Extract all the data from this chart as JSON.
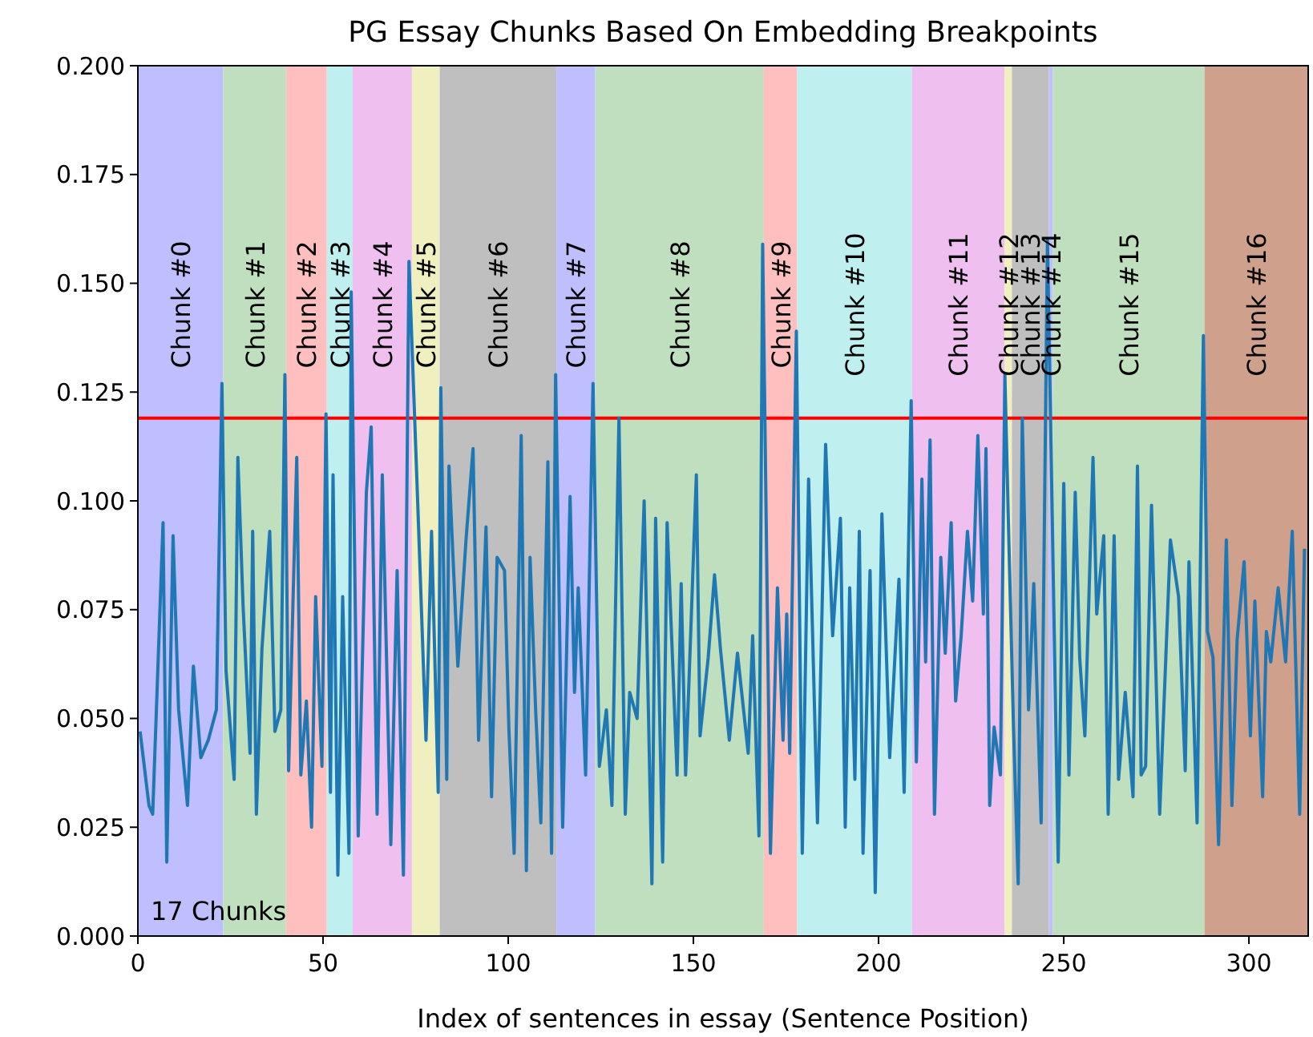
{
  "chart_data": {
    "type": "line",
    "title": "PG Essay Chunks Based On Embedding Breakpoints",
    "xlabel": "Index of sentences in essay (Sentence Position)",
    "annotations": [
      "17 Chunks"
    ],
    "xlim": [
      0,
      316
    ],
    "xticks": [
      0,
      50,
      100,
      150,
      200,
      250,
      300
    ],
    "ylim": [
      0,
      0.2
    ],
    "yticks": [
      {
        "value": 0,
        "label": "0.000"
      },
      {
        "value": 0.025,
        "label": "0.025"
      },
      {
        "value": 0.05,
        "label": "0.050"
      },
      {
        "value": 0.075,
        "label": "0.075"
      },
      {
        "value": 0.1,
        "label": "0.100"
      },
      {
        "value": 0.125,
        "label": "0.125"
      },
      {
        "value": 0.15,
        "label": "0.150"
      },
      {
        "value": 0.175,
        "label": "0.175"
      },
      {
        "value": 0.2,
        "label": "0.200"
      }
    ],
    "grid": false,
    "marker": "none",
    "line_style": "solid",
    "ref_lines": [
      {
        "axis": "y",
        "value": 0.119,
        "color": "#ff0000"
      }
    ],
    "bands": [
      {
        "axis": "x",
        "from": 0,
        "to": 23,
        "label": "Chunk #0",
        "color": "#bfbfff"
      },
      {
        "axis": "x",
        "from": 23,
        "to": 40,
        "label": "Chunk #1",
        "color": "#bfdfbf"
      },
      {
        "axis": "x",
        "from": 40,
        "to": 51,
        "label": "Chunk #2",
        "color": "#ffbfbf"
      },
      {
        "axis": "x",
        "from": 51,
        "to": 58,
        "label": "Chunk #3",
        "color": "#bfefef"
      },
      {
        "axis": "x",
        "from": 58,
        "to": 74,
        "label": "Chunk #4",
        "color": "#efbfef"
      },
      {
        "axis": "x",
        "from": 74,
        "to": 81.5,
        "label": "Chunk #5",
        "color": "#efefbf"
      },
      {
        "axis": "x",
        "from": 81.5,
        "to": 113,
        "label": "Chunk #6",
        "color": "#bfbfbf"
      },
      {
        "axis": "x",
        "from": 113,
        "to": 123.5,
        "label": "Chunk #7",
        "color": "#bfbfff"
      },
      {
        "axis": "x",
        "from": 123.5,
        "to": 169,
        "label": "Chunk #8",
        "color": "#bfdfbf"
      },
      {
        "axis": "x",
        "from": 169,
        "to": 178,
        "label": "Chunk #9",
        "color": "#ffbfbf"
      },
      {
        "axis": "x",
        "from": 178,
        "to": 209,
        "label": "Chunk #10",
        "color": "#bfefef"
      },
      {
        "axis": "x",
        "from": 209,
        "to": 234,
        "label": "Chunk #11",
        "color": "#efbfef"
      },
      {
        "axis": "x",
        "from": 234,
        "to": 236,
        "label": "Chunk #12",
        "color": "#efefbf"
      },
      {
        "axis": "x",
        "from": 236,
        "to": 246,
        "label": "Chunk #13",
        "color": "#bfbfbf"
      },
      {
        "axis": "x",
        "from": 246,
        "to": 247,
        "label": "Chunk #14",
        "color": "#bfbfff"
      },
      {
        "axis": "x",
        "from": 247,
        "to": 288,
        "label": "Chunk #15",
        "color": "#bfdfbf"
      },
      {
        "axis": "x",
        "from": 288,
        "to": 316,
        "label": "Chunk #16",
        "color": "#cfa08c"
      }
    ],
    "series": [
      {
        "color": "#1f77b4",
        "x": [
          0.6,
          3,
          4,
          6.8,
          7.8,
          9.5,
          11,
          13.4,
          15,
          17,
          19,
          21.2,
          22.7,
          23.8,
          26,
          27,
          28.4,
          30.3,
          31,
          32,
          33.5,
          35.6,
          37,
          38.6,
          39.7,
          40.7,
          42.9,
          44,
          45.5,
          46.9,
          48,
          49.7,
          50.8,
          52,
          52.7,
          54,
          55.3,
          57,
          57.6,
          59.5,
          61.7,
          63,
          64.6,
          66,
          68.3,
          70,
          71.7,
          73.2,
          75.5,
          77.8,
          79.3,
          81.1,
          81.8,
          83.4,
          84,
          86.4,
          88.6,
          90.5,
          92,
          94,
          95.5,
          97,
          99,
          100.2,
          101.6,
          103.5,
          104.9,
          105.9,
          107.4,
          108.8,
          110.7,
          111.7,
          112.8,
          114.7,
          116.7,
          117.9,
          118.9,
          120.9,
          122.9,
          124.6,
          126.5,
          128,
          129.9,
          131.6,
          132.8,
          134.8,
          136.7,
          138.8,
          139.8,
          141.7,
          142.9,
          145.6,
          146.7,
          147.9,
          150.8,
          151.8,
          154,
          155.7,
          157.3,
          159.7,
          161.9,
          164.8,
          166,
          167.7,
          168.7,
          170.8,
          172.7,
          174.2,
          175.2,
          176,
          177.8,
          179.4,
          181.1,
          183.5,
          185.7,
          187.6,
          189.7,
          191,
          192.2,
          193.6,
          194.8,
          195.8,
          197.7,
          199.1,
          200.9,
          203,
          205.5,
          206.9,
          208.8,
          210.2,
          211.7,
          212.7,
          213.9,
          215.1,
          216.8,
          218,
          219.6,
          220.8,
          222.3,
          224,
          225.4,
          226.8,
          228.3,
          229,
          230,
          231.2,
          232.9,
          234.1,
          235,
          236.4,
          237.7,
          238.8,
          240.5,
          241.9,
          243.9,
          245.6,
          248.5,
          250,
          251.4,
          253.1,
          254.3,
          255.7,
          257.9,
          258.9,
          260.8,
          262,
          263.6,
          264.8,
          266.6,
          268.7,
          269.9,
          270.9,
          272.1,
          273.7,
          275.9,
          278.8,
          281,
          282.8,
          283.8,
          286,
          287.7,
          288.8,
          290.3,
          291.8,
          293.9,
          295.4,
          296.8,
          298.7,
          300.4,
          301.6,
          303.7,
          304.7,
          305.9,
          307.9,
          309.9,
          311.7,
          313.7,
          315
        ],
        "values": [
          0.047,
          0.03,
          0.028,
          0.095,
          0.017,
          0.092,
          0.052,
          0.03,
          0.062,
          0.041,
          0.045,
          0.052,
          0.127,
          0.061,
          0.036,
          0.11,
          0.076,
          0.042,
          0.093,
          0.028,
          0.066,
          0.093,
          0.047,
          0.052,
          0.129,
          0.038,
          0.11,
          0.037,
          0.054,
          0.025,
          0.078,
          0.039,
          0.12,
          0.033,
          0.106,
          0.014,
          0.078,
          0.019,
          0.148,
          0.023,
          0.102,
          0.117,
          0.028,
          0.106,
          0.021,
          0.084,
          0.014,
          0.155,
          0.101,
          0.045,
          0.093,
          0.033,
          0.126,
          0.036,
          0.108,
          0.062,
          0.091,
          0.112,
          0.045,
          0.094,
          0.032,
          0.087,
          0.084,
          0.047,
          0.019,
          0.115,
          0.015,
          0.087,
          0.052,
          0.026,
          0.109,
          0.019,
          0.129,
          0.025,
          0.101,
          0.056,
          0.08,
          0.037,
          0.127,
          0.039,
          0.052,
          0.03,
          0.119,
          0.028,
          0.056,
          0.05,
          0.1,
          0.012,
          0.096,
          0.017,
          0.095,
          0.037,
          0.081,
          0.037,
          0.106,
          0.046,
          0.064,
          0.083,
          0.066,
          0.045,
          0.065,
          0.042,
          0.069,
          0.023,
          0.159,
          0.019,
          0.08,
          0.045,
          0.074,
          0.042,
          0.139,
          0.019,
          0.105,
          0.026,
          0.113,
          0.069,
          0.096,
          0.025,
          0.08,
          0.036,
          0.093,
          0.019,
          0.084,
          0.01,
          0.097,
          0.041,
          0.082,
          0.033,
          0.123,
          0.04,
          0.105,
          0.063,
          0.114,
          0.028,
          0.087,
          0.065,
          0.095,
          0.054,
          0.069,
          0.093,
          0.077,
          0.115,
          0.074,
          0.112,
          0.03,
          0.048,
          0.037,
          0.129,
          0.097,
          0.049,
          0.012,
          0.119,
          0.052,
          0.081,
          0.026,
          0.16,
          0.017,
          0.104,
          0.037,
          0.102,
          0.064,
          0.046,
          0.11,
          0.074,
          0.092,
          0.028,
          0.092,
          0.036,
          0.056,
          0.032,
          0.108,
          0.037,
          0.039,
          0.099,
          0.028,
          0.091,
          0.078,
          0.038,
          0.086,
          0.026,
          0.138,
          0.07,
          0.064,
          0.021,
          0.091,
          0.03,
          0.068,
          0.086,
          0.046,
          0.077,
          0.032,
          0.07,
          0.063,
          0.08,
          0.063,
          0.093,
          0.028,
          0.089
        ]
      }
    ]
  }
}
